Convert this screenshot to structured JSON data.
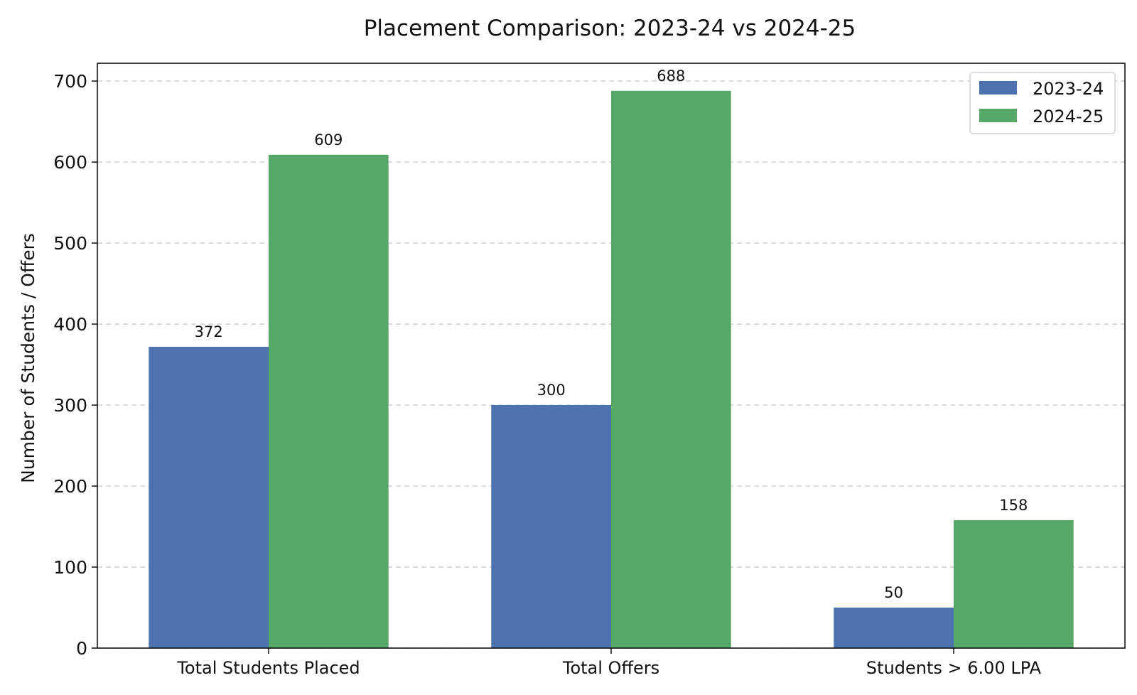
{
  "chart_data": {
    "type": "bar",
    "title": "Placement Comparison: 2023-24 vs 2024-25",
    "xlabel": "",
    "ylabel": "Number of Students / Offers",
    "categories": [
      "Total Students Placed",
      "Total Offers",
      "Students > 6.00 LPA"
    ],
    "series": [
      {
        "name": "2023-24",
        "color": "#4c72b0",
        "values": [
          372,
          300,
          50
        ]
      },
      {
        "name": "2024-25",
        "color": "#55a868",
        "values": [
          609,
          688,
          158
        ]
      }
    ],
    "ylim": [
      0,
      722
    ],
    "yticks": [
      0,
      100,
      200,
      300,
      400,
      500,
      600,
      700
    ],
    "grid": "y-dashed",
    "legend_position": "top-right"
  }
}
